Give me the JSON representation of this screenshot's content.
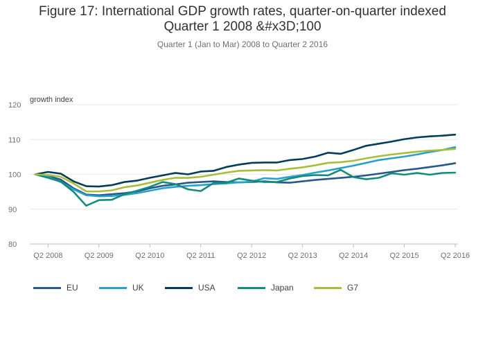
{
  "chart_data": {
    "type": "line",
    "title": "Figure 17: International GDP growth rates, quarter-on-quarter indexed Quarter 1 2008 &#x3D;100",
    "title_lines": [
      "Figure 17: International GDP growth rates, quarter-on-quarter indexed",
      "Quarter 1 2008 &#x3D;100"
    ],
    "subtitle": "Quarter 1 (Jan to Mar) 2008 to Quarter 2 2016",
    "ylabel": "growth index",
    "xlabel": "",
    "ylim": [
      80,
      120
    ],
    "yticks": [
      80,
      90,
      100,
      110,
      120
    ],
    "xtick_labels": [
      "Q2 2008",
      "Q2 2009",
      "Q2 2010",
      "Q2 2011",
      "Q2 2012",
      "Q2 2013",
      "Q2 2014",
      "Q2 2015",
      "Q2 2016"
    ],
    "grid": true,
    "legend_position": "bottom-left",
    "x": [
      "Q1 2008",
      "Q2 2008",
      "Q3 2008",
      "Q4 2008",
      "Q1 2009",
      "Q2 2009",
      "Q3 2009",
      "Q4 2009",
      "Q1 2010",
      "Q2 2010",
      "Q3 2010",
      "Q4 2010",
      "Q1 2011",
      "Q2 2011",
      "Q3 2011",
      "Q4 2011",
      "Q1 2012",
      "Q2 2012",
      "Q3 2012",
      "Q4 2012",
      "Q1 2013",
      "Q2 2013",
      "Q3 2013",
      "Q4 2013",
      "Q1 2014",
      "Q2 2014",
      "Q3 2014",
      "Q4 2014",
      "Q1 2015",
      "Q2 2015",
      "Q3 2015",
      "Q4 2015",
      "Q1 2016",
      "Q2 2016"
    ],
    "series": [
      {
        "name": "EU",
        "color": "#27578c",
        "values": [
          100,
          99.5,
          98.5,
          96.0,
          94.2,
          94.0,
          94.3,
          94.6,
          95.1,
          96.0,
          96.7,
          97.1,
          97.6,
          97.8,
          98.0,
          97.8,
          97.7,
          97.8,
          98.0,
          97.7,
          97.6,
          98.0,
          98.4,
          98.7,
          99.0,
          99.3,
          99.7,
          100.2,
          100.7,
          101.2,
          101.6,
          102.1,
          102.6,
          103.2
        ]
      },
      {
        "name": "UK",
        "color": "#27a0cc",
        "values": [
          100,
          99.3,
          97.8,
          95.7,
          94.0,
          93.7,
          93.8,
          94.1,
          94.6,
          95.3,
          96.0,
          96.4,
          96.7,
          96.9,
          97.2,
          97.4,
          97.7,
          97.9,
          98.9,
          98.7,
          99.3,
          99.8,
          100.5,
          101.1,
          101.8,
          102.5,
          103.3,
          104.1,
          104.6,
          105.1,
          105.7,
          106.4,
          107.0,
          107.8
        ]
      },
      {
        "name": "USA",
        "color": "#003d59",
        "values": [
          100,
          100.7,
          100.2,
          98.0,
          96.6,
          96.5,
          96.9,
          97.8,
          98.2,
          99.0,
          99.7,
          100.4,
          100.0,
          100.8,
          101.0,
          102.1,
          102.8,
          103.3,
          103.4,
          103.4,
          104.1,
          104.4,
          105.1,
          106.2,
          105.9,
          107.0,
          108.2,
          108.8,
          109.4,
          110.1,
          110.6,
          110.9,
          111.1,
          111.4
        ]
      },
      {
        "name": "Japan",
        "color": "#118c7b",
        "values": [
          100,
          99.0,
          97.9,
          95.0,
          91.0,
          92.6,
          92.7,
          94.3,
          95.3,
          96.4,
          97.8,
          97.2,
          95.7,
          95.2,
          97.5,
          97.6,
          98.8,
          98.2,
          97.8,
          97.8,
          98.8,
          99.5,
          99.8,
          99.7,
          101.3,
          99.2,
          98.6,
          99.0,
          100.3,
          99.9,
          100.4,
          99.9,
          100.4,
          100.5
        ]
      },
      {
        "name": "G7",
        "color": "#a8bd3a",
        "values": [
          100,
          99.8,
          99.3,
          97.4,
          95.1,
          95.1,
          95.4,
          96.3,
          96.8,
          97.6,
          98.4,
          99.0,
          99.0,
          99.3,
          99.9,
          100.5,
          101.0,
          101.1,
          101.2,
          101.1,
          101.6,
          102.0,
          102.6,
          103.3,
          103.5,
          103.9,
          104.6,
          105.2,
          105.7,
          106.1,
          106.5,
          106.8,
          107.0,
          107.3
        ]
      }
    ]
  }
}
